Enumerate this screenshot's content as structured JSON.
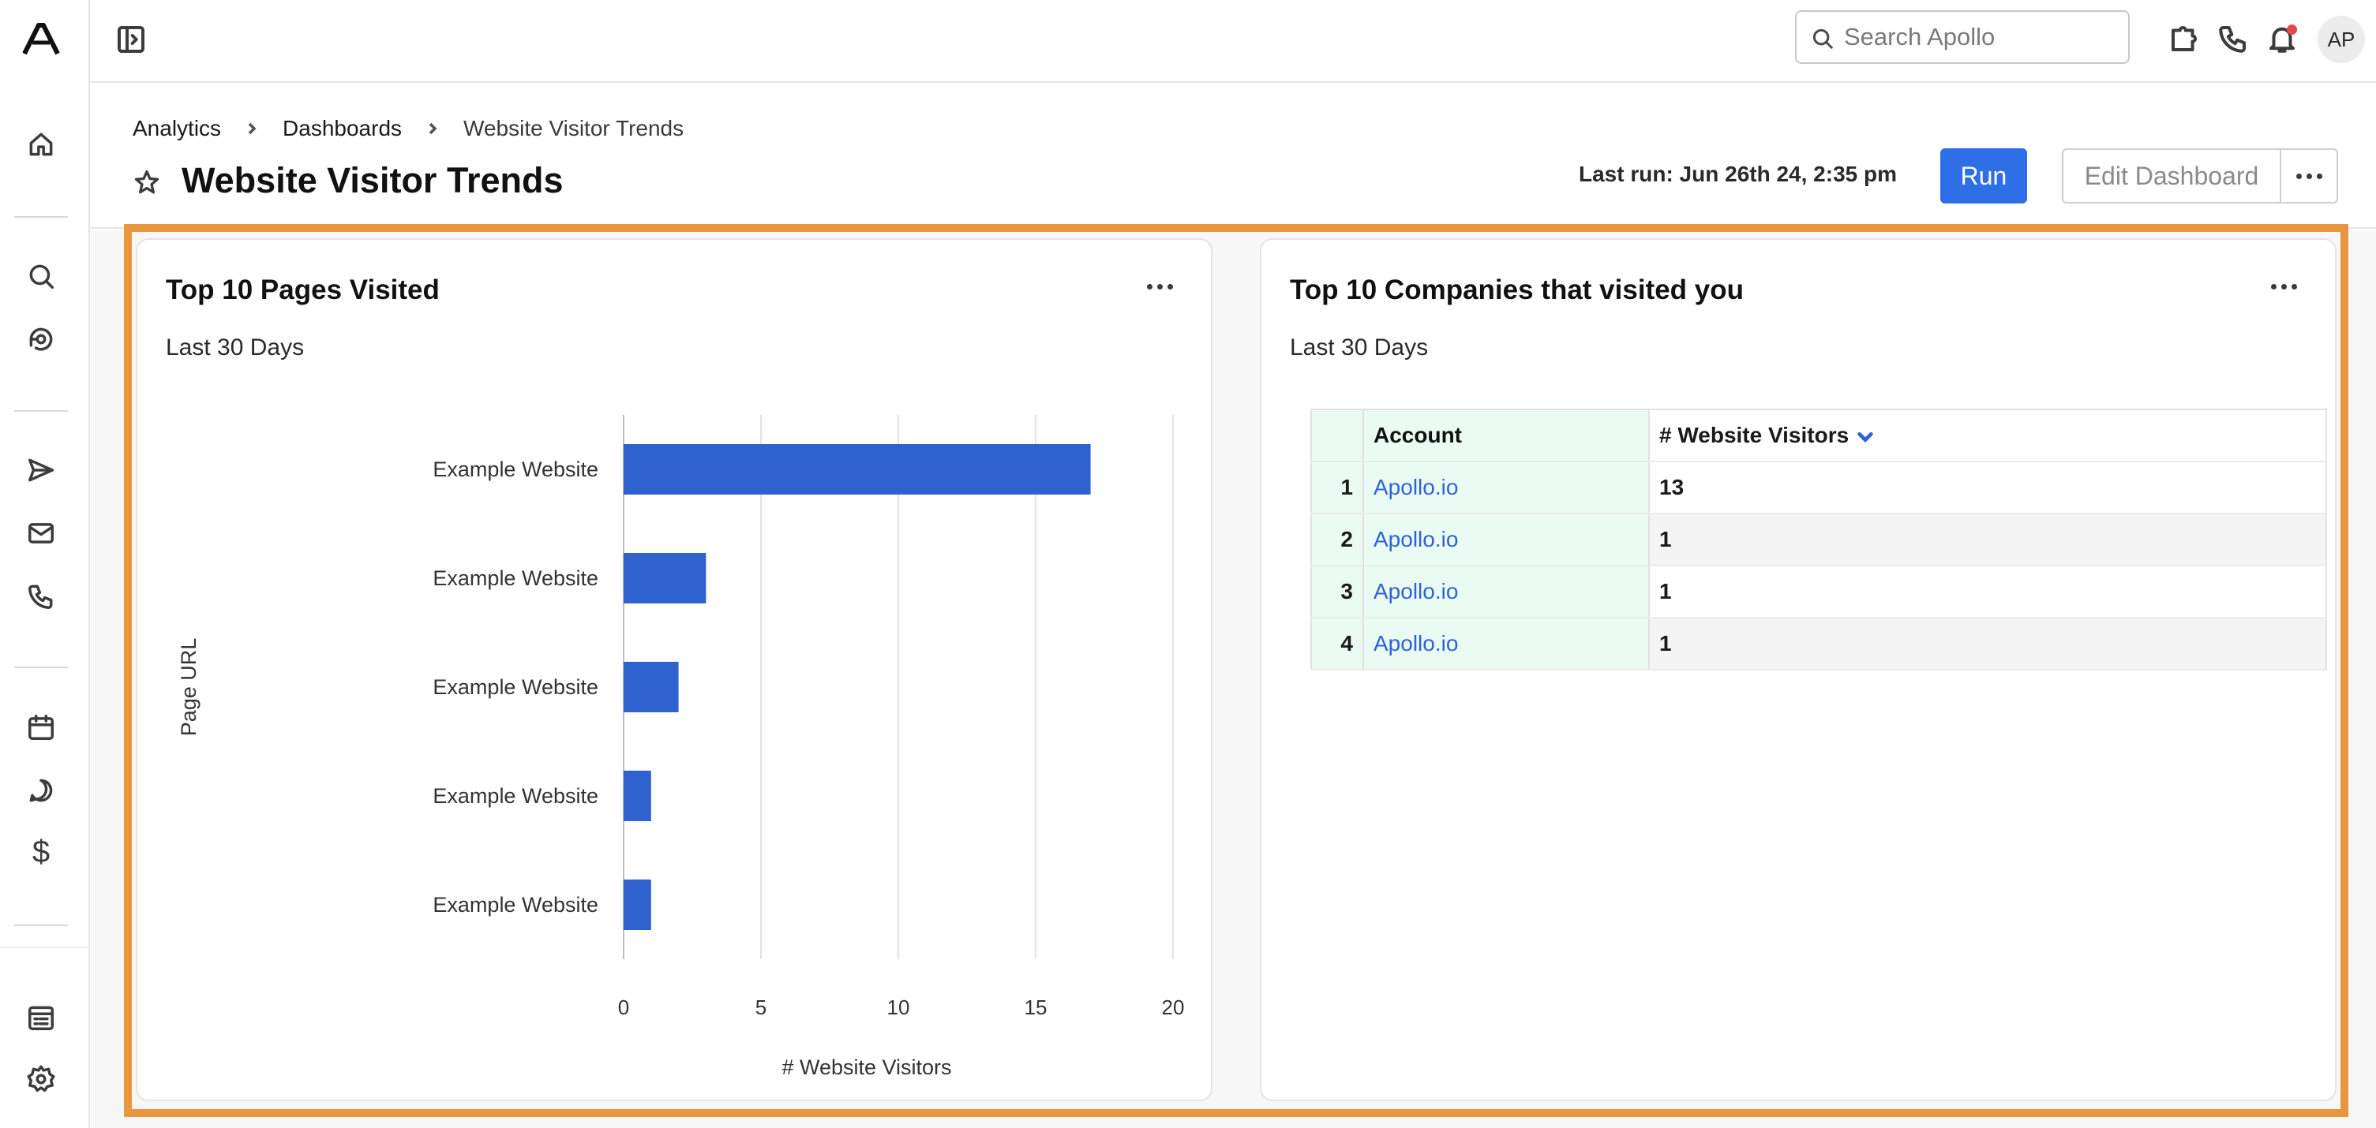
{
  "search": {
    "placeholder": "Search Apollo"
  },
  "user": {
    "initials": "AP"
  },
  "breadcrumb": [
    "Analytics",
    "Dashboards",
    "Website Visitor Trends"
  ],
  "page": {
    "title": "Website Visitor Trends",
    "last_run": "Last run: Jun 26th 24, 2:35 pm",
    "run_label": "Run",
    "edit_label": "Edit Dashboard"
  },
  "colors": {
    "accent": "#2e6ee6",
    "bar": "#2e62cf",
    "highlight": "#e9973f",
    "link": "#2d62d6"
  },
  "cards": {
    "pages": {
      "title": "Top 10 Pages Visited",
      "subtitle": "Last 30 Days"
    },
    "companies": {
      "title": "Top 10 Companies that visited you",
      "subtitle": "Last 30 Days",
      "columns": [
        "Account",
        "# Website Visitors"
      ],
      "rows": [
        {
          "n": "1",
          "account": "Apollo.io",
          "visitors": "13"
        },
        {
          "n": "2",
          "account": "Apollo.io",
          "visitors": "1"
        },
        {
          "n": "3",
          "account": "Apollo.io",
          "visitors": "1"
        },
        {
          "n": "4",
          "account": "Apollo.io",
          "visitors": "1"
        }
      ]
    }
  },
  "chart_data": {
    "type": "bar",
    "orientation": "horizontal",
    "categories": [
      "Example Website",
      "Example Website",
      "Example Website",
      "Example Website",
      "Example Website"
    ],
    "values": [
      17,
      3,
      2,
      1,
      1
    ],
    "xlabel": "# Website Visitors",
    "ylabel": "Page URL",
    "xlim": [
      0,
      20
    ],
    "xticks": [
      0,
      5,
      10,
      15,
      20
    ],
    "grid": "vertical"
  }
}
